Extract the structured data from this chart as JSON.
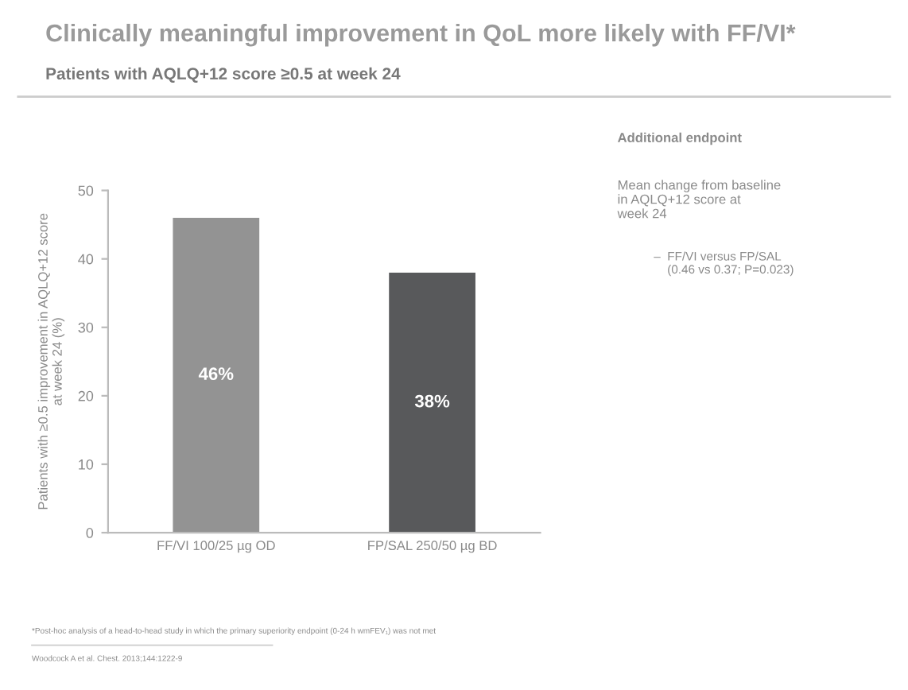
{
  "chart_data": {
    "type": "bar",
    "title": "Clinically meaningful improvement in QoL more likely with FF/VI*",
    "subtitle": "Patients with AQLQ+12 score ≥0.5 at week 24",
    "ylabel": "Patients with ≥0.5 improvement in AQLQ+12 score\nat week 24 (%)",
    "categories": [
      "FF/VI 100/25 µg OD",
      "FP/SAL 250/50 µg BD"
    ],
    "values": [
      46,
      38
    ],
    "colors": [
      "#939393",
      "#58595b"
    ],
    "value_labels": [
      "46%",
      "38%"
    ],
    "ylim": [
      0,
      50
    ],
    "yticks": [
      0,
      10,
      20,
      30,
      40,
      50
    ],
    "grid": false,
    "legend": false,
    "annotations": [
      "Additional endpoint",
      "Mean change from baseline\nin AQLQ+12 score at\nweek 24",
      "–  FF/VI versus FP/SAL\n    (0.46 vs 0.37; P=0.023)",
      "*Post-hoc analysis of a head-to-head study in which the primary superiority endpoint (0-24 h wmFEV₁) was not met",
      "Woodcock A et al. Chest. 2013;144:1222-9"
    ]
  }
}
